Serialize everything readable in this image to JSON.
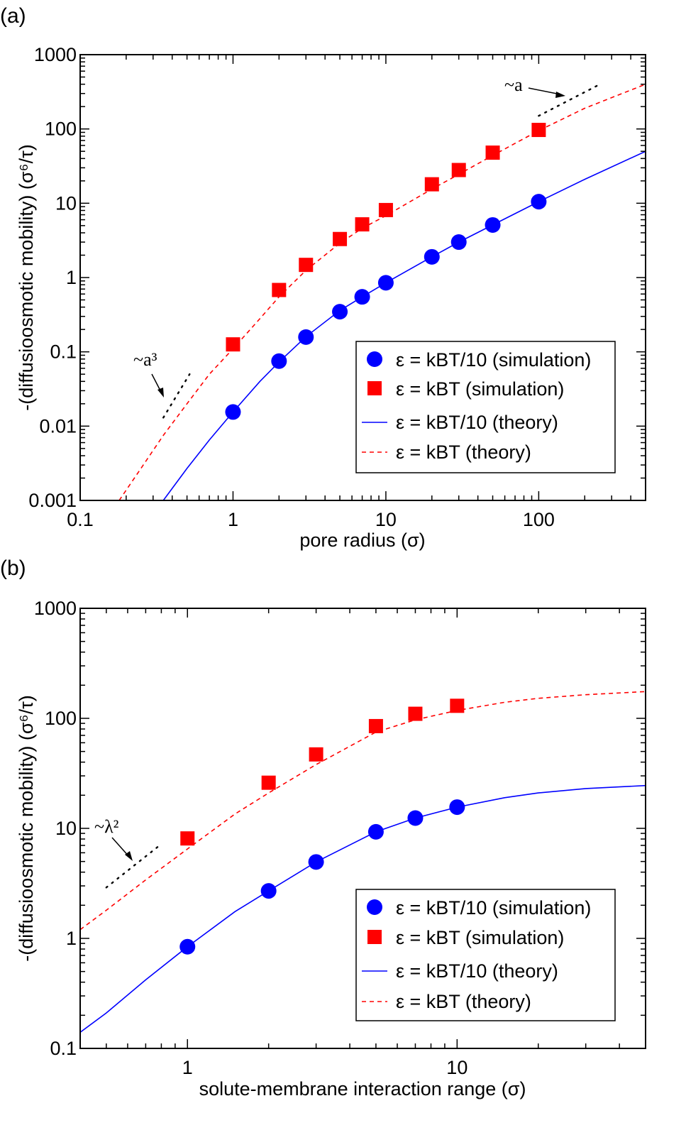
{
  "chart_data": [
    {
      "type": "scatter",
      "panel_label": "(a)",
      "xlabel": "pore radius  (σ)",
      "ylabel": "-(diffusioosmotic mobility)  (σ⁶/τ)",
      "xscale": "log",
      "yscale": "log",
      "xlim": [
        0.1,
        500
      ],
      "ylim": [
        0.001,
        1000
      ],
      "xtick_labels": [
        "0.1",
        "1",
        "10",
        "100"
      ],
      "ytick_labels": [
        "0.001",
        "0.01",
        "0.1",
        "1",
        "10",
        "100",
        "1000"
      ],
      "series": [
        {
          "name": "ε = kBT/10 (simulation)",
          "kind": "scatter",
          "marker": "circle",
          "color": "#0000ff",
          "x": [
            1,
            2,
            3,
            5,
            7,
            10,
            20,
            30,
            50,
            100
          ],
          "y": [
            0.0155,
            0.075,
            0.158,
            0.347,
            0.55,
            0.85,
            1.9,
            3.0,
            5.1,
            10.5
          ]
        },
        {
          "name": "ε = kBT (simulation)",
          "kind": "scatter",
          "marker": "square",
          "color": "#ff0000",
          "x": [
            1,
            2,
            3,
            5,
            7,
            10,
            20,
            30,
            50,
            100
          ],
          "y": [
            0.126,
            0.68,
            1.48,
            3.3,
            5.2,
            8.1,
            18.0,
            28.0,
            48.0,
            97.0
          ]
        },
        {
          "name": "ε = kBT/10 (theory)",
          "kind": "line",
          "style": "solid",
          "color": "#0000ff",
          "x": [
            0.35,
            0.5,
            0.7,
            1,
            1.5,
            2,
            3,
            5,
            7,
            10,
            20,
            30,
            50,
            100,
            200,
            500
          ],
          "y": [
            0.001,
            0.0027,
            0.0065,
            0.0155,
            0.04,
            0.073,
            0.16,
            0.36,
            0.55,
            0.85,
            1.9,
            3.0,
            5.1,
            10.5,
            21,
            50
          ]
        },
        {
          "name": "ε = kBT (theory)",
          "kind": "line",
          "style": "dashed",
          "color": "#ff0000",
          "x": [
            0.18,
            0.25,
            0.35,
            0.5,
            0.7,
            1,
            1.5,
            2,
            3,
            5,
            7,
            10,
            20,
            30,
            50,
            100,
            200,
            500
          ],
          "y": [
            0.001,
            0.0027,
            0.0075,
            0.02,
            0.05,
            0.11,
            0.28,
            0.55,
            1.25,
            2.9,
            4.6,
            6.8,
            15.5,
            24.5,
            44,
            95,
            190,
            400
          ]
        }
      ],
      "annotations": [
        {
          "text": "~a³",
          "guide_x": [
            0.35,
            0.52
          ],
          "guide_y": [
            0.013,
            0.05
          ]
        },
        {
          "text": "~a",
          "guide_x": [
            100,
            240
          ],
          "guide_y": [
            150,
            380
          ]
        }
      ],
      "legend_position": "lower-right"
    },
    {
      "type": "scatter",
      "panel_label": "(b)",
      "xlabel": "solute-membrane interaction range  (σ)",
      "ylabel": "-(diffusioosmotic mobility)  (σ⁶/τ)",
      "xscale": "log",
      "yscale": "log",
      "xlim": [
        0.4,
        50
      ],
      "ylim": [
        0.1,
        1000
      ],
      "xtick_labels": [
        "1",
        "10"
      ],
      "ytick_labels": [
        "0.1",
        "1",
        "10",
        "100",
        "1000"
      ],
      "series": [
        {
          "name": "ε = kBT/10 (simulation)",
          "kind": "scatter",
          "marker": "circle",
          "color": "#0000ff",
          "x": [
            1,
            2,
            3,
            5,
            7,
            10
          ],
          "y": [
            0.84,
            2.7,
            4.95,
            9.3,
            12.4,
            15.6
          ]
        },
        {
          "name": "ε = kBT (simulation)",
          "kind": "scatter",
          "marker": "square",
          "color": "#ff0000",
          "x": [
            1,
            2,
            3,
            5,
            7,
            10
          ],
          "y": [
            8.1,
            26.0,
            47.0,
            85.0,
            110.0,
            130.0
          ]
        },
        {
          "name": "ε = kBT/10 (theory)",
          "kind": "line",
          "style": "solid",
          "color": "#0000ff",
          "x": [
            0.4,
            0.5,
            0.7,
            1,
            1.5,
            2,
            3,
            5,
            7,
            10,
            15,
            20,
            30,
            50
          ],
          "y": [
            0.14,
            0.21,
            0.42,
            0.84,
            1.75,
            2.7,
            4.95,
            9.3,
            12.4,
            15.6,
            19,
            21,
            23,
            24.5
          ]
        },
        {
          "name": "ε = kBT (theory)",
          "kind": "line",
          "style": "dashed",
          "color": "#ff0000",
          "x": [
            0.4,
            0.5,
            0.7,
            1,
            1.5,
            2,
            3,
            5,
            7,
            10,
            15,
            20,
            30,
            50
          ],
          "y": [
            1.2,
            1.8,
            3.4,
            6.5,
            13.5,
            21,
            38,
            75,
            97,
            118,
            140,
            152,
            164,
            175
          ]
        }
      ],
      "annotations": [
        {
          "text": "~λ²",
          "guide_x": [
            0.5,
            0.8
          ],
          "guide_y": [
            2.9,
            7.2
          ]
        }
      ],
      "legend_position": "lower-right"
    }
  ]
}
